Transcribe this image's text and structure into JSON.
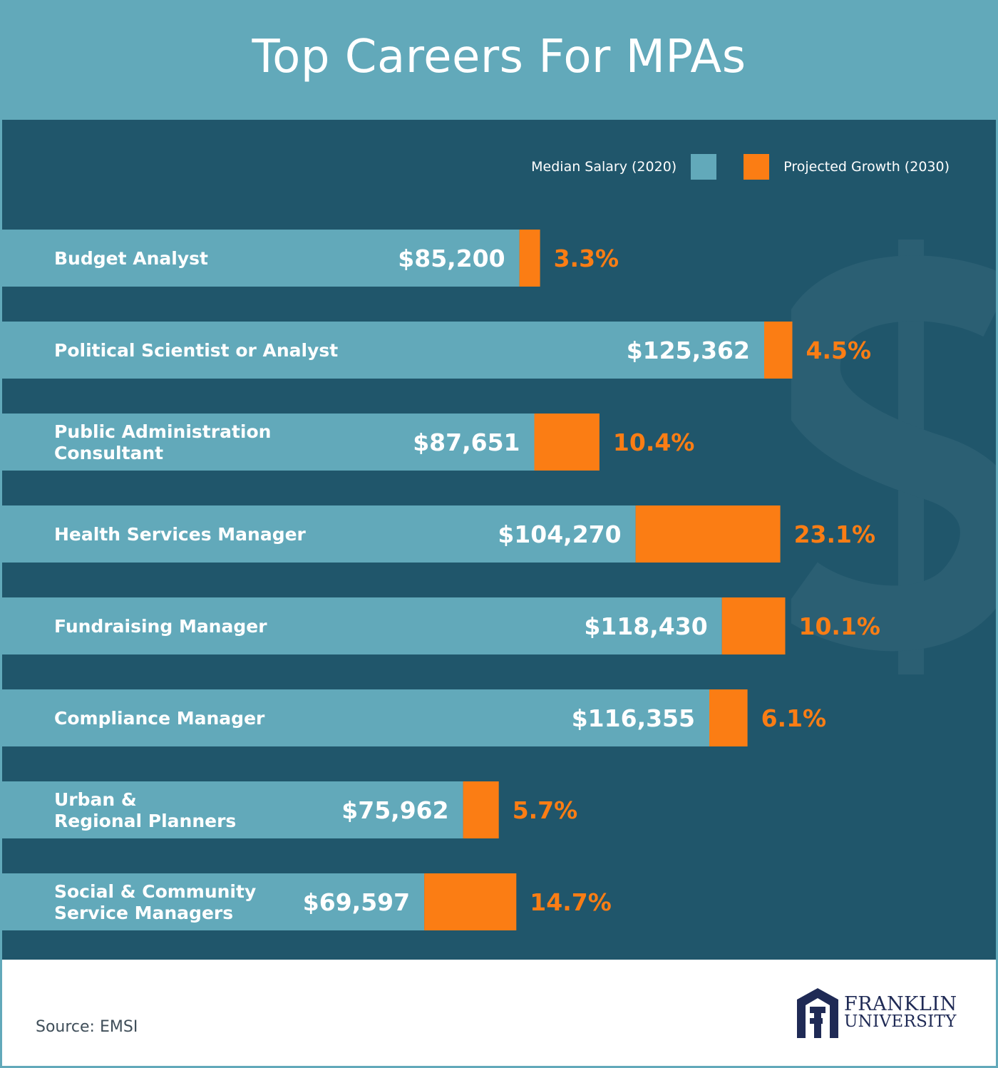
{
  "header": {
    "title": "Top Careers For MPAs"
  },
  "legend": {
    "salary_label": "Median Salary (2020)",
    "growth_label": "Projected Growth (2030)"
  },
  "colors": {
    "header_bg": "#62a9ba",
    "panel_bg": "#20566b",
    "salary_bar": "#62a9ba",
    "growth_bar": "#fb7d14",
    "label_text": "#ffffff",
    "growth_text": "#fb7d14",
    "logo": "#1f2a55"
  },
  "watermark_icon": "dollar-sign-icon",
  "chart_data": {
    "type": "bar",
    "orientation": "horizontal",
    "stacked": true,
    "categories": [
      "Budget Analyst",
      "Political Scientist or Analyst",
      "Public Administration\nConsultant",
      "Health Services Manager",
      "Fundraising Manager",
      "Compliance Manager",
      "Urban &\nRegional Planners",
      "Social & Community\nService Managers"
    ],
    "series": [
      {
        "name": "Median Salary (2020)",
        "values": [
          85200,
          125362,
          87651,
          104270,
          118430,
          116355,
          75962,
          69597
        ],
        "labels": [
          "$85,200",
          "$125,362",
          "$87,651",
          "$104,270",
          "$118,430",
          "$116,355",
          "$75,962",
          "$69,597"
        ]
      },
      {
        "name": "Projected Growth (2030)",
        "values": [
          3.3,
          4.5,
          10.4,
          23.1,
          10.1,
          6.1,
          5.7,
          14.7
        ],
        "labels": [
          "3.3%",
          "4.5%",
          "10.4%",
          "23.1%",
          "10.1%",
          "6.1%",
          "5.7%",
          "14.7%"
        ]
      }
    ],
    "legend_position": "top-right",
    "grid": false
  },
  "footer": {
    "source": "Source: EMSI",
    "logo_line1": "FRANKLIN",
    "logo_line2": "UNIVERSITY"
  }
}
